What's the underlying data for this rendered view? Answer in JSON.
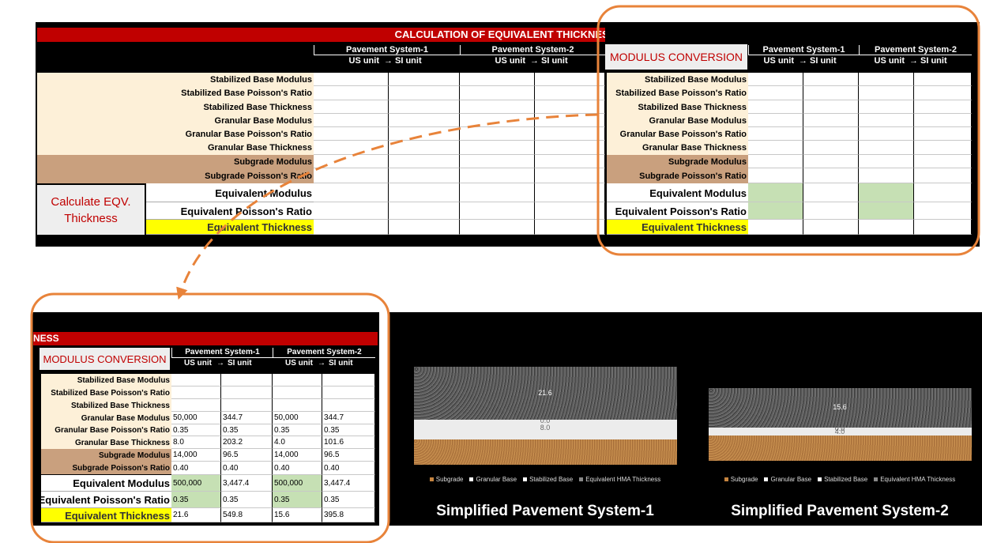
{
  "top_sheet": {
    "title": "CALCULATION OF EQUIVALENT THICKNESS",
    "systems": [
      "Pavement System-1",
      "Pavement System-2"
    ],
    "units": [
      "US unit",
      "→",
      "SI unit"
    ],
    "rows": [
      "Stabilized Base Modulus",
      "Stabilized Base Poisson's Ratio",
      "Stabilized Base Thickness",
      "Granular Base Modulus",
      "Granular Base Poisson's Ratio",
      "Granular Base Thickness",
      "Subgrade Modulus",
      "Subgrade Poisson's Ratio",
      "Equivalent Modulus",
      "Equivalent Poisson's Ratio",
      "Equivalent Thickness"
    ],
    "button": "Calculate EQV. Thickness"
  },
  "zoom_panel": {
    "heading": "MODULUS CONVERSION"
  },
  "bottom_sheet": {
    "title": "NESS",
    "heading": "MODULUS CONVERSION",
    "rows": [
      {
        "label": "Stabilized Base Modulus",
        "cells": [
          null,
          null,
          null,
          null
        ]
      },
      {
        "label": "Stabilized Base Poisson's Ratio",
        "cells": [
          null,
          null,
          null,
          null
        ]
      },
      {
        "label": "Stabilized Base Thickness",
        "cells": [
          null,
          null,
          null,
          null
        ]
      },
      {
        "label": "Granular Base Modulus",
        "cells": [
          "50,000",
          "344.7",
          "50,000",
          "344.7"
        ]
      },
      {
        "label": "Granular Base Poisson's Ratio",
        "cells": [
          "0.35",
          "0.35",
          "0.35",
          "0.35"
        ]
      },
      {
        "label": "Granular Base Thickness",
        "cells": [
          "8.0",
          "203.2",
          "4.0",
          "101.6"
        ]
      },
      {
        "label": "Subgrade Modulus",
        "cells": [
          "14,000",
          "96.5",
          "14,000",
          "96.5"
        ]
      },
      {
        "label": "Subgrade Poisson's Ratio",
        "cells": [
          "0.40",
          "0.40",
          "0.40",
          "0.40"
        ]
      },
      {
        "label": "Equivalent Modulus",
        "cells": [
          "500,000",
          "3,447.4",
          "500,000",
          "3,447.4"
        ]
      },
      {
        "label": "Equivalent Poisson's Ratio",
        "cells": [
          "0.35",
          "0.35",
          "0.35",
          "0.35"
        ]
      },
      {
        "label": "Equivalent Thickness",
        "cells": [
          "21.6",
          "549.8",
          "15.6",
          "395.8"
        ]
      }
    ]
  },
  "legend": [
    "Subgrade",
    "Granular Base",
    "Stabilized Base",
    "Equivalent HMA Thickness"
  ],
  "charts": [
    {
      "title": "Simplified Pavement System-1",
      "layer_labels": [
        "21.6",
        "0.0",
        "8.0"
      ]
    },
    {
      "title": "Simplified Pavement System-2",
      "layer_labels": [
        "15.6",
        "0.0",
        "4.0"
      ]
    }
  ]
}
